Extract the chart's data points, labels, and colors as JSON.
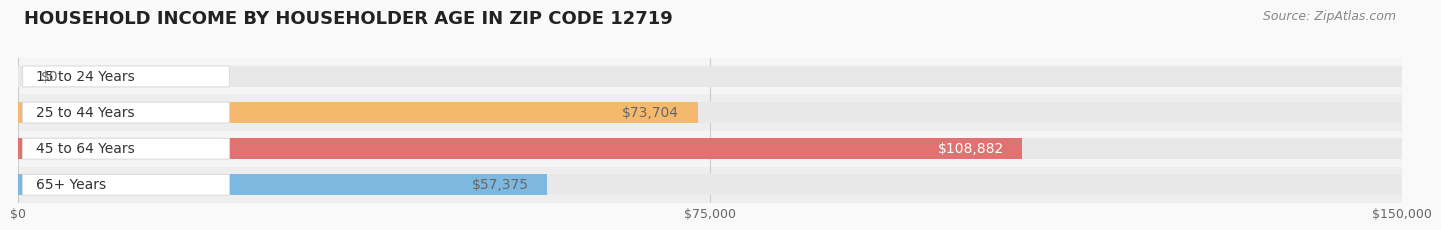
{
  "title": "HOUSEHOLD INCOME BY HOUSEHOLDER AGE IN ZIP CODE 12719",
  "source": "Source: ZipAtlas.com",
  "categories": [
    "15 to 24 Years",
    "25 to 44 Years",
    "45 to 64 Years",
    "65+ Years"
  ],
  "values": [
    0,
    73704,
    108882,
    57375
  ],
  "bar_colors": [
    "#f4a0b5",
    "#f5b96e",
    "#e07272",
    "#7db8e0"
  ],
  "bar_bg_color": "#e8e8e8",
  "xlim": [
    0,
    150000
  ],
  "xticks": [
    0,
    75000,
    150000
  ],
  "xtick_labels": [
    "$0",
    "$75,000",
    "$150,000"
  ],
  "value_labels": [
    "$0",
    "$73,704",
    "$108,882",
    "$57,375"
  ],
  "value_label_colors": [
    "#666666",
    "#666666",
    "#ffffff",
    "#666666"
  ],
  "title_fontsize": 13,
  "source_fontsize": 9,
  "cat_fontsize": 10,
  "val_fontsize": 10,
  "tick_fontsize": 9,
  "bar_height": 0.58,
  "background_color": "#f9f9f9",
  "row_bg_colors": [
    "#f5f5f5",
    "#eeeeee",
    "#f5f5f5",
    "#eeeeee"
  ]
}
